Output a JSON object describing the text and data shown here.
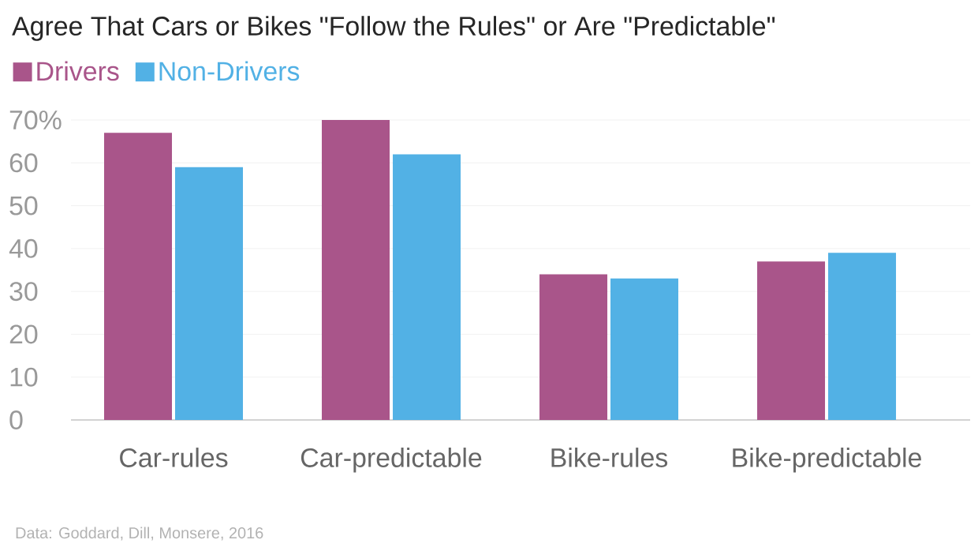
{
  "chart_data": {
    "type": "bar",
    "title": "Agree That Cars or Bikes \"Follow the Rules\" or Are \"Predictable\"",
    "categories": [
      "Car-rules",
      "Car-predictable",
      "Bike-rules",
      "Bike-predictable"
    ],
    "series": [
      {
        "name": "Drivers",
        "color": "#a9558a",
        "values": [
          67,
          70,
          34,
          37
        ]
      },
      {
        "name": "Non-Drivers",
        "color": "#52b1e5",
        "values": [
          59,
          62,
          33,
          39
        ]
      }
    ],
    "ylim": [
      0,
      70
    ],
    "yticks": [
      0,
      10,
      20,
      30,
      40,
      50,
      60,
      {
        "value": 70,
        "label": "70%"
      }
    ],
    "grid": "y",
    "legend": "top left",
    "annotations": [
      "Data: Goddard, Dill, Monsere, 2016"
    ]
  }
}
